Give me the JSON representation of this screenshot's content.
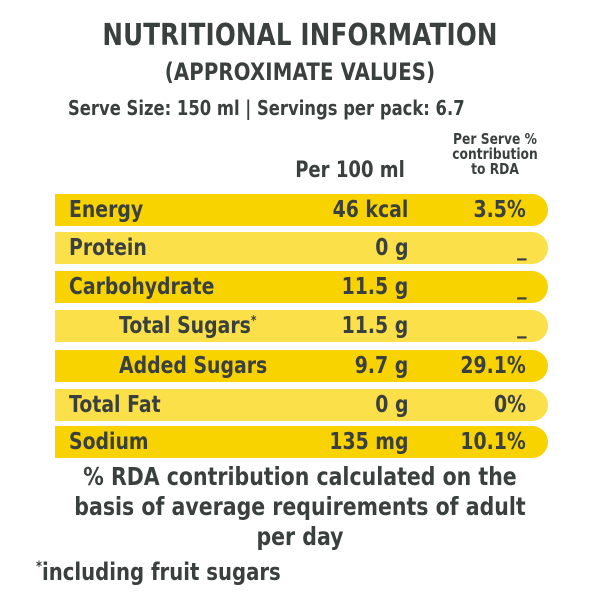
{
  "title": "NUTRITIONAL INFORMATION",
  "subtitle": "(APPROXIMATE VALUES)",
  "serve_info": "Serve Size: 150 ml | Servings per pack: 6.7",
  "columns": {
    "per_100": "Per 100 ml",
    "per_serve_rda": "Per Serve %\ncontribution\nto RDA"
  },
  "rows": [
    {
      "name": "Energy",
      "per_100": "46 kcal",
      "rda": "3.5%"
    },
    {
      "name": "Protein",
      "per_100": "0 g",
      "rda": "_"
    },
    {
      "name": "Carbohydrate",
      "per_100": "11.5 g",
      "rda": "_"
    },
    {
      "name": "Total Sugars",
      "marker": "*",
      "per_100": "11.5 g",
      "rda": "_"
    },
    {
      "name": "Added Sugars",
      "per_100": "9.7 g",
      "rda": "29.1%"
    },
    {
      "name": "Total Fat",
      "per_100": "0 g",
      "rda": "0%"
    },
    {
      "name": "Sodium",
      "per_100": "135 mg",
      "rda": "10.1%"
    }
  ],
  "rda_note": "% RDA contribution calculated on the basis of average requirements of adult per day",
  "footnote": {
    "marker": "*",
    "text": "including fruit sugars"
  },
  "colors": {
    "row_dark": "#f9d300",
    "row_light": "#fbe04a",
    "text": "#3a403e"
  }
}
